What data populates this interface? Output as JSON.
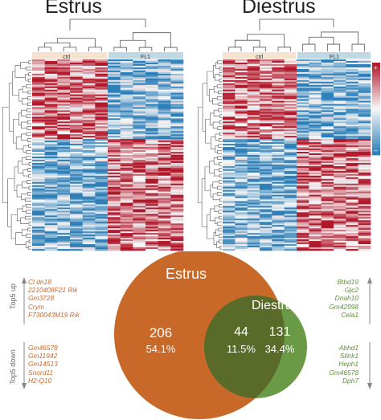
{
  "heatmaps": [
    {
      "title": "Estrus",
      "groups": [
        "ctrl",
        "FL1"
      ],
      "seed": 11
    },
    {
      "title": "Diestrus",
      "groups": [
        "ctrl",
        "FL1"
      ],
      "seed": 29
    }
  ],
  "color_scale": {
    "high_label": "+",
    "low_label": "–",
    "high_color": "#b2182b",
    "mid_color": "#f7f7f7",
    "low_color": "#2c7fb8"
  },
  "group_colors": {
    "ctrl": "#f6e3cf",
    "FL1": "#bfd8e3"
  },
  "venn": {
    "set_a": {
      "name": "Estrus",
      "color": "#c8692a"
    },
    "set_b": {
      "name": "Diestrus",
      "color": "#6a9a45"
    },
    "overlap_color": "#5a6a28",
    "only_a": {
      "count": "206",
      "pct": "54.1%"
    },
    "both": {
      "count": "44",
      "pct": "11.5%"
    },
    "only_b": {
      "count": "131",
      "pct": "34.4%"
    }
  },
  "estrus_genes": {
    "label_up": "Top5 up",
    "up": [
      "Cl dn18",
      "2210408F21 Rik",
      "Gm3728",
      "Crym",
      "F730043M19 Rik"
    ],
    "label_down": "Top5 down",
    "down": [
      "Gm46578",
      "Gm11942",
      "Gm14513",
      "Snord11",
      "H2-Q10"
    ]
  },
  "diestrus_genes": {
    "up": [
      "Btbd19",
      "Gjc2",
      "Dnah10",
      "Gm42998",
      "Cela1"
    ],
    "down": [
      "Abhd1",
      "Slitrk1",
      "Heph1",
      "Gm46578",
      "Dph7"
    ]
  }
}
